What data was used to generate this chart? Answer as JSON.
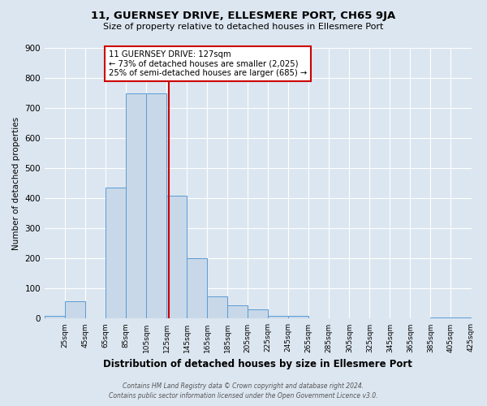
{
  "title": "11, GUERNSEY DRIVE, ELLESMERE PORT, CH65 9JA",
  "subtitle": "Size of property relative to detached houses in Ellesmere Port",
  "xlabel": "Distribution of detached houses by size in Ellesmere Port",
  "ylabel": "Number of detached properties",
  "bin_left_edges": [
    5,
    25,
    45,
    65,
    85,
    105,
    125,
    145,
    165,
    185,
    205,
    225,
    245,
    265,
    285,
    305,
    325,
    345,
    365,
    385,
    405
  ],
  "bin_width": 20,
  "bin_labels": [
    "25sqm",
    "45sqm",
    "65sqm",
    "85sqm",
    "105sqm",
    "125sqm",
    "145sqm",
    "165sqm",
    "185sqm",
    "205sqm",
    "225sqm",
    "245sqm",
    "265sqm",
    "285sqm",
    "305sqm",
    "325sqm",
    "345sqm",
    "365sqm",
    "385sqm",
    "405sqm",
    "425sqm"
  ],
  "bar_heights": [
    10,
    57,
    0,
    435,
    750,
    750,
    408,
    200,
    75,
    45,
    30,
    10,
    10,
    0,
    0,
    0,
    0,
    0,
    0,
    5,
    5
  ],
  "bar_color": "#c8d8e8",
  "bar_edge_color": "#5b9bd5",
  "property_value": 127,
  "vline_color": "#cc0000",
  "annotation_title": "11 GUERNSEY DRIVE: 127sqm",
  "annotation_line1": "← 73% of detached houses are smaller (2,025)",
  "annotation_line2": "25% of semi-detached houses are larger (685) →",
  "annotation_box_color": "#cc0000",
  "annotation_bg_color": "#ffffff",
  "ylim": [
    0,
    900
  ],
  "yticks": [
    0,
    100,
    200,
    300,
    400,
    500,
    600,
    700,
    800,
    900
  ],
  "xlim_left": 5,
  "xlim_right": 425,
  "footer_line1": "Contains HM Land Registry data © Crown copyright and database right 2024.",
  "footer_line2": "Contains public sector information licensed under the Open Government Licence v3.0.",
  "bg_color": "#dce6f0",
  "grid_color": "#ffffff"
}
